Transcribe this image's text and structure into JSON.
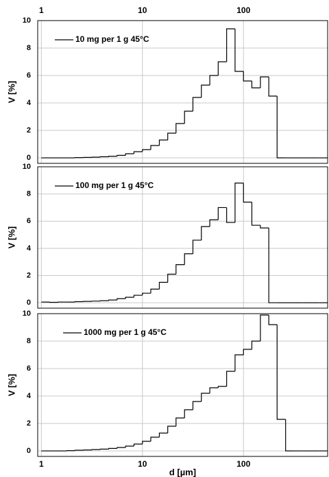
{
  "chart_data": [
    {
      "type": "histogram",
      "series_name": "10 mg per 1 g 45°C",
      "color": "#000000",
      "ylabel": "V [%]",
      "xscale": "log",
      "xlim": [
        0.92,
        680
      ],
      "xticks": [
        1,
        10,
        100
      ],
      "xaxis_position": "top",
      "ylim": [
        -0.4,
        10
      ],
      "yticks": [
        0,
        2,
        4,
        6,
        8,
        10
      ],
      "grid": true,
      "legend": "upper left",
      "bins": [
        1,
        1.21,
        1.47,
        1.78,
        2.15,
        2.61,
        3.16,
        3.83,
        4.64,
        5.62,
        6.81,
        8.25,
        10,
        12.1,
        14.7,
        17.8,
        21.5,
        26.1,
        31.6,
        38.3,
        46.4,
        56.2,
        68.1,
        82.5,
        100,
        121,
        147,
        178,
        215,
        261,
        316,
        383,
        464,
        562,
        681
      ],
      "values": [
        0,
        0,
        0,
        0,
        0.02,
        0.03,
        0.05,
        0.08,
        0.12,
        0.18,
        0.3,
        0.45,
        0.6,
        0.9,
        1.3,
        1.8,
        2.5,
        3.4,
        4.4,
        5.3,
        6.0,
        7.0,
        9.4,
        6.3,
        5.6,
        5.1,
        5.9,
        4.5,
        0,
        0,
        0,
        0,
        0,
        0
      ]
    },
    {
      "type": "histogram",
      "series_name": "100 mg per 1 g 45°C",
      "color": "#000000",
      "ylabel": "V [%]",
      "xscale": "log",
      "xlim": [
        0.92,
        680
      ],
      "xticks": [
        1,
        10,
        100
      ],
      "ylim": [
        -0.4,
        10
      ],
      "yticks": [
        0,
        2,
        4,
        6,
        8,
        10
      ],
      "grid": true,
      "legend": "upper left",
      "bins": [
        1,
        1.21,
        1.47,
        1.78,
        2.15,
        2.61,
        3.16,
        3.83,
        4.64,
        5.62,
        6.81,
        8.25,
        10,
        12.1,
        14.7,
        17.8,
        21.5,
        26.1,
        31.6,
        38.3,
        46.4,
        56.2,
        68.1,
        82.5,
        100,
        121,
        147,
        178,
        215,
        261,
        316,
        383,
        464,
        562,
        681
      ],
      "values": [
        0.05,
        0.03,
        0.05,
        0.05,
        0.08,
        0.1,
        0.12,
        0.15,
        0.2,
        0.3,
        0.4,
        0.55,
        0.7,
        1.0,
        1.5,
        2.1,
        2.8,
        3.6,
        4.6,
        5.6,
        6.1,
        7.0,
        5.9,
        8.8,
        7.4,
        5.7,
        5.5,
        0,
        0,
        0,
        0,
        0,
        0,
        0
      ]
    },
    {
      "type": "histogram",
      "series_name": "1000 mg per 1 g 45°C",
      "color": "#000000",
      "ylabel": "V [%]",
      "xlabel": "d [µm]",
      "xscale": "log",
      "xlim": [
        0.92,
        680
      ],
      "xticks": [
        1,
        10,
        100
      ],
      "xaxis_position": "bottom",
      "ylim": [
        -0.4,
        10
      ],
      "yticks": [
        0,
        2,
        4,
        6,
        8,
        10
      ],
      "grid": true,
      "legend": "upper left",
      "bins": [
        1,
        1.21,
        1.47,
        1.78,
        2.15,
        2.61,
        3.16,
        3.83,
        4.64,
        5.62,
        6.81,
        8.25,
        10,
        12.1,
        14.7,
        17.8,
        21.5,
        26.1,
        31.6,
        38.3,
        46.4,
        56.2,
        68.1,
        82.5,
        100,
        121,
        147,
        178,
        215,
        261,
        316,
        383,
        464,
        562,
        681
      ],
      "values": [
        0,
        0,
        0,
        0.02,
        0.05,
        0.07,
        0.1,
        0.13,
        0.18,
        0.25,
        0.35,
        0.5,
        0.7,
        1.0,
        1.3,
        1.8,
        2.4,
        3.0,
        3.6,
        4.2,
        4.6,
        4.7,
        5.8,
        7.0,
        7.4,
        8.0,
        9.9,
        9.2,
        2.3,
        0,
        0,
        0,
        0,
        0
      ]
    }
  ]
}
